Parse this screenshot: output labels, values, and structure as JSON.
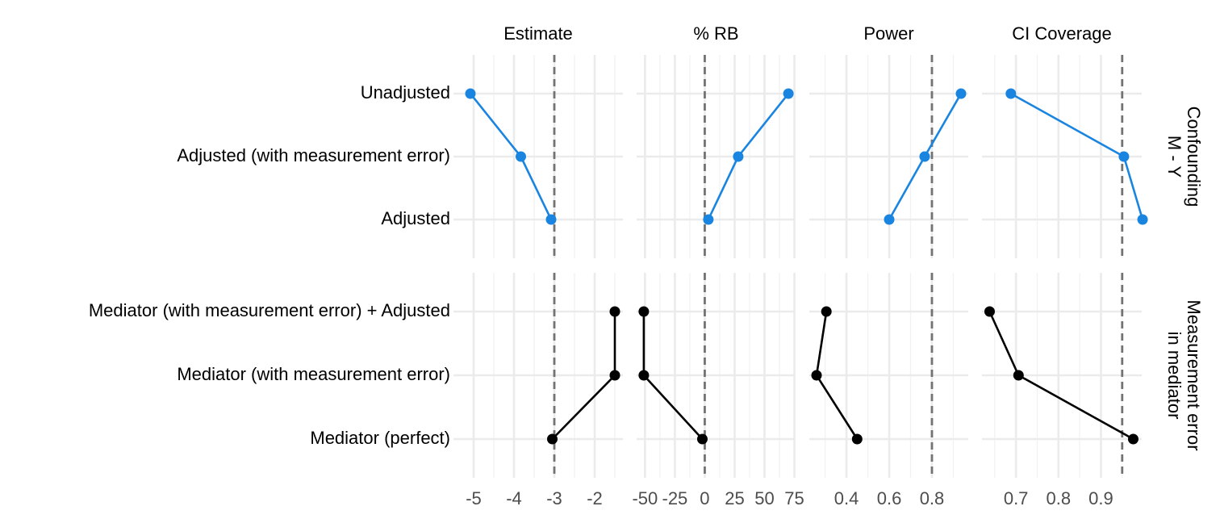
{
  "chart_data": {
    "type": "line",
    "columns": [
      {
        "title": "Estimate",
        "xlim": [
          -5.5,
          -1.3
        ],
        "xticks": [
          -5,
          -4,
          -3,
          -2
        ],
        "reference": -3
      },
      {
        "title": "% RB",
        "xlim": [
          -57,
          76
        ],
        "xticks": [
          -50,
          -25,
          0,
          25,
          50,
          75
        ],
        "reference": 0
      },
      {
        "title": "Power",
        "xlim": [
          0.226,
          0.97
        ],
        "xticks": [
          0.4,
          0.6,
          0.8
        ],
        "reference": 0.8
      },
      {
        "title": "CI Coverage",
        "xlim": [
          0.62,
          0.996
        ],
        "xticks": [
          0.7,
          0.8,
          0.9
        ],
        "reference": 0.95
      }
    ],
    "rows": [
      {
        "label": [
          "Confounding",
          "M - Y"
        ],
        "color": "#1a85e0",
        "categories": [
          "Unadjusted",
          "Adjusted (with measurement error)",
          "Adjusted"
        ],
        "values": [
          [
            -5.08,
            -3.83,
            -3.08
          ],
          [
            70,
            28,
            3
          ],
          [
            0.936,
            0.766,
            0.6
          ],
          [
            0.688,
            0.954,
            0.998
          ]
        ]
      },
      {
        "label": [
          "Measurement error",
          "in mediator"
        ],
        "color": "#000000",
        "categories": [
          "Mediator (with measurement error) + Adjusted",
          "Mediator (with measurement error)",
          "Mediator (perfect)"
        ],
        "values": [
          [
            -1.5,
            -1.5,
            -3.05
          ],
          [
            -51,
            -51,
            -2
          ],
          [
            0.306,
            0.26,
            0.45
          ],
          [
            0.638,
            0.706,
            0.976
          ]
        ]
      }
    ]
  }
}
